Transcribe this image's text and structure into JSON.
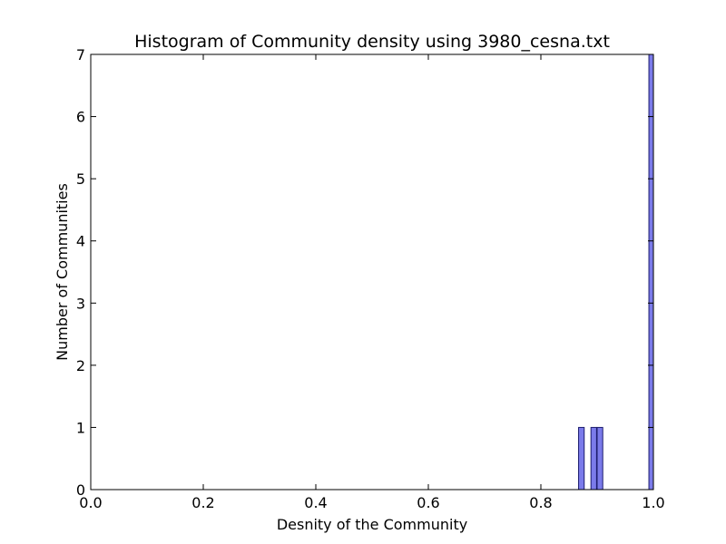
{
  "chart_data": {
    "type": "bar",
    "title": "Histogram of Community density using 3980_cesna.txt",
    "xlabel": "Desnity of the Community",
    "ylabel": "Number of Communities",
    "xlim": [
      0.0,
      1.0
    ],
    "ylim": [
      0,
      7
    ],
    "xticks": [
      "0.0",
      "0.2",
      "0.4",
      "0.6",
      "0.8",
      "1.0"
    ],
    "yticks": [
      "0",
      "1",
      "2",
      "3",
      "4",
      "5",
      "6",
      "7"
    ],
    "bin_width": 0.01,
    "bins": [
      {
        "x": 0.867,
        "count": 1
      },
      {
        "x": 0.889,
        "count": 1
      },
      {
        "x": 0.9,
        "count": 1
      },
      {
        "x": 0.992,
        "count": 7
      }
    ],
    "grid": false,
    "bar_color": "#7b7bea",
    "bar_edge_color": "#1c1c6e"
  }
}
